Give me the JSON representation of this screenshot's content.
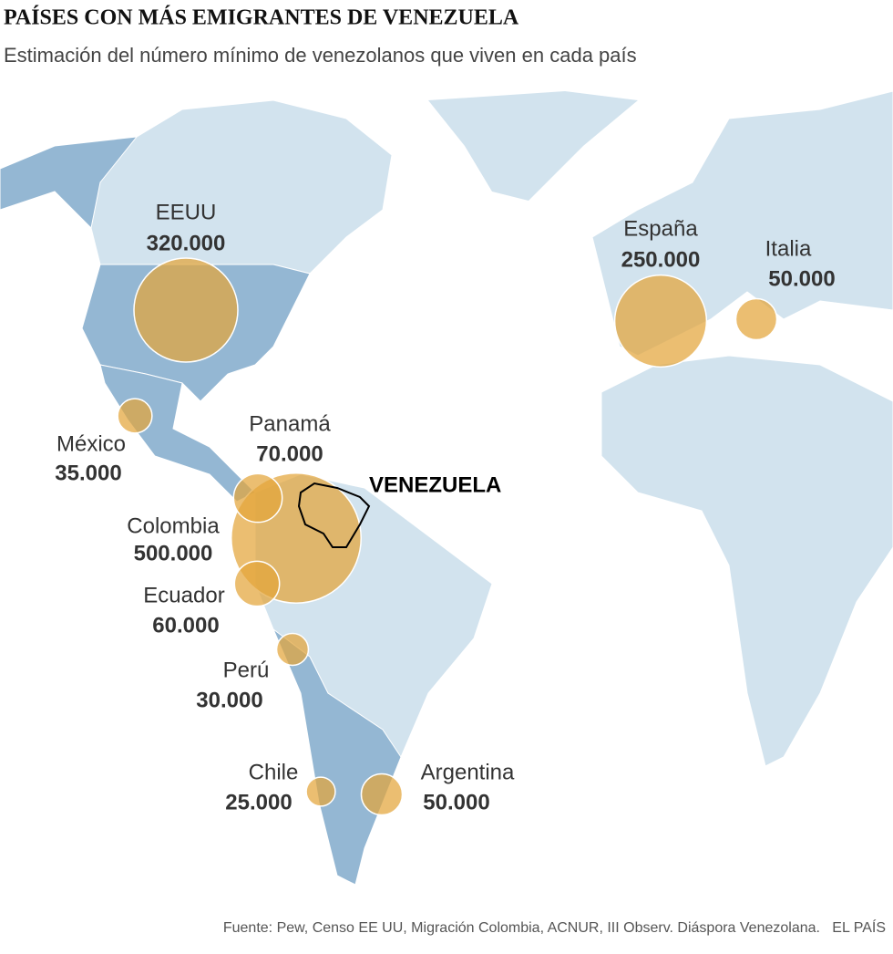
{
  "map": {
    "title": "PAÍSES CON MÁS EMIGRANTES DE VENEZUELA",
    "subtitle": "Estimación del número mínimo de venezolanos que viven en cada país",
    "origin": "VENEZUELA",
    "countries": [
      {
        "name": "EEUU",
        "value": 320000,
        "value_label": "320.000"
      },
      {
        "name": "España",
        "value": 250000,
        "value_label": "250.000"
      },
      {
        "name": "Italia",
        "value": 50000,
        "value_label": "50.000"
      },
      {
        "name": "México",
        "value": 35000,
        "value_label": "35.000"
      },
      {
        "name": "Panamá",
        "value": 70000,
        "value_label": "70.000"
      },
      {
        "name": "Colombia",
        "value": 500000,
        "value_label": "500.000"
      },
      {
        "name": "Ecuador",
        "value": 60000,
        "value_label": "60.000"
      },
      {
        "name": "Perú",
        "value": 30000,
        "value_label": "30.000"
      },
      {
        "name": "Chile",
        "value": 25000,
        "value_label": "25.000"
      },
      {
        "name": "Argentina",
        "value": 50000,
        "value_label": "50.000"
      }
    ],
    "source": "Fuente: Pew, Censo EE UU, Migración Colombia, ACNUR, III Observ. Diáspora Venezolana.   EL PAÍS"
  }
}
